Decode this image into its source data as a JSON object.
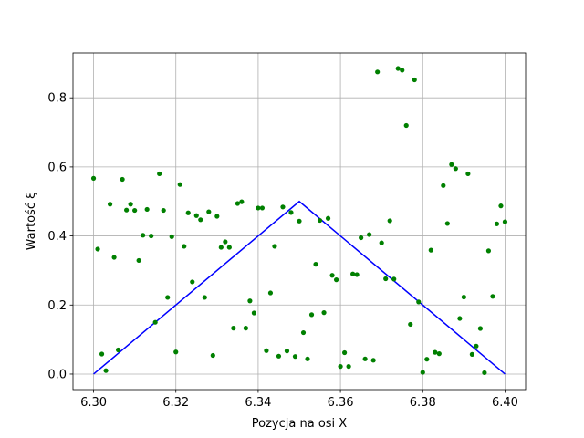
{
  "chart_data": {
    "type": "scatter",
    "xlabel": "Pozycja na osi X",
    "ylabel": "Wartość ξ",
    "xlim": [
      6.295,
      6.405
    ],
    "ylim": [
      -0.045,
      0.93
    ],
    "x_ticks": [
      6.3,
      6.32,
      6.34,
      6.36,
      6.38,
      6.4
    ],
    "x_tick_labels": [
      "6.30",
      "6.32",
      "6.34",
      "6.36",
      "6.38",
      "6.40"
    ],
    "y_ticks": [
      0.0,
      0.2,
      0.4,
      0.6,
      0.8
    ],
    "y_tick_labels": [
      "0.0",
      "0.2",
      "0.4",
      "0.6",
      "0.8"
    ],
    "grid": true,
    "series": [
      {
        "kind": "line",
        "color": "#0000ff",
        "x": [
          6.3,
          6.35,
          6.4
        ],
        "y": [
          0.0,
          0.5,
          0.0
        ]
      },
      {
        "kind": "scatter",
        "color": "#008000",
        "points": [
          [
            6.3,
            0.567
          ],
          [
            6.301,
            0.362
          ],
          [
            6.302,
            0.058
          ],
          [
            6.303,
            0.01
          ],
          [
            6.304,
            0.492
          ],
          [
            6.305,
            0.338
          ],
          [
            6.306,
            0.07
          ],
          [
            6.307,
            0.564
          ],
          [
            6.308,
            0.475
          ],
          [
            6.309,
            0.492
          ],
          [
            6.31,
            0.474
          ],
          [
            6.311,
            0.329
          ],
          [
            6.312,
            0.402
          ],
          [
            6.313,
            0.477
          ],
          [
            6.314,
            0.4
          ],
          [
            6.315,
            0.15
          ],
          [
            6.316,
            0.58
          ],
          [
            6.317,
            0.474
          ],
          [
            6.318,
            0.222
          ],
          [
            6.319,
            0.398
          ],
          [
            6.32,
            0.064
          ],
          [
            6.321,
            0.549
          ],
          [
            6.322,
            0.37
          ],
          [
            6.323,
            0.467
          ],
          [
            6.324,
            0.267
          ],
          [
            6.325,
            0.459
          ],
          [
            6.326,
            0.447
          ],
          [
            6.327,
            0.222
          ],
          [
            6.328,
            0.47
          ],
          [
            6.329,
            0.054
          ],
          [
            6.33,
            0.457
          ],
          [
            6.331,
            0.367
          ],
          [
            6.332,
            0.383
          ],
          [
            6.333,
            0.367
          ],
          [
            6.334,
            0.133
          ],
          [
            6.335,
            0.494
          ],
          [
            6.336,
            0.499
          ],
          [
            6.337,
            0.133
          ],
          [
            6.338,
            0.212
          ],
          [
            6.339,
            0.177
          ],
          [
            6.34,
            0.481
          ],
          [
            6.341,
            0.481
          ],
          [
            6.342,
            0.068
          ],
          [
            6.343,
            0.235
          ],
          [
            6.344,
            0.37
          ],
          [
            6.345,
            0.052
          ],
          [
            6.346,
            0.484
          ],
          [
            6.347,
            0.067
          ],
          [
            6.348,
            0.468
          ],
          [
            6.349,
            0.051
          ],
          [
            6.35,
            0.443
          ],
          [
            6.351,
            0.12
          ],
          [
            6.352,
            0.044
          ],
          [
            6.353,
            0.172
          ],
          [
            6.354,
            0.318
          ],
          [
            6.355,
            0.445
          ],
          [
            6.356,
            0.178
          ],
          [
            6.357,
            0.451
          ],
          [
            6.358,
            0.286
          ],
          [
            6.359,
            0.273
          ],
          [
            6.36,
            0.022
          ],
          [
            6.361,
            0.062
          ],
          [
            6.362,
            0.022
          ],
          [
            6.363,
            0.29
          ],
          [
            6.364,
            0.288
          ],
          [
            6.365,
            0.395
          ],
          [
            6.366,
            0.044
          ],
          [
            6.367,
            0.404
          ],
          [
            6.368,
            0.04
          ],
          [
            6.369,
            0.875
          ],
          [
            6.37,
            0.38
          ],
          [
            6.371,
            0.276
          ],
          [
            6.372,
            0.444
          ],
          [
            6.373,
            0.275
          ],
          [
            6.374,
            0.885
          ],
          [
            6.375,
            0.88
          ],
          [
            6.376,
            0.72
          ],
          [
            6.377,
            0.144
          ],
          [
            6.378,
            0.852
          ],
          [
            6.379,
            0.209
          ],
          [
            6.38,
            0.005
          ],
          [
            6.381,
            0.043
          ],
          [
            6.382,
            0.359
          ],
          [
            6.383,
            0.063
          ],
          [
            6.384,
            0.059
          ],
          [
            6.385,
            0.546
          ],
          [
            6.386,
            0.436
          ],
          [
            6.387,
            0.607
          ],
          [
            6.388,
            0.595
          ],
          [
            6.389,
            0.161
          ],
          [
            6.39,
            0.223
          ],
          [
            6.391,
            0.58
          ],
          [
            6.392,
            0.057
          ],
          [
            6.393,
            0.081
          ],
          [
            6.394,
            0.132
          ],
          [
            6.395,
            0.004
          ],
          [
            6.396,
            0.357
          ],
          [
            6.397,
            0.225
          ],
          [
            6.398,
            0.435
          ],
          [
            6.399,
            0.487
          ],
          [
            6.4,
            0.441
          ]
        ]
      }
    ]
  }
}
